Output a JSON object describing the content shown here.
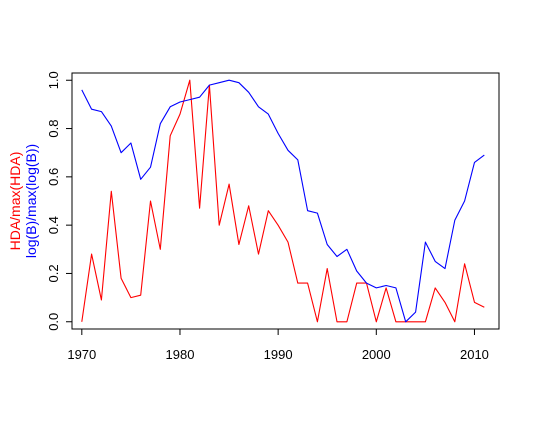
{
  "chart_data": {
    "type": "line",
    "title": "",
    "xlabel": "",
    "ylabel_lines": [
      "HDA/max(HDA)",
      "log(B)/max(log(B))"
    ],
    "xlim": [
      1969,
      2012.5
    ],
    "ylim": [
      -0.03,
      1.03
    ],
    "xticks": [
      1970,
      1980,
      1990,
      2000,
      2010
    ],
    "yticks": [
      0.0,
      0.2,
      0.4,
      0.6,
      0.8,
      1.0
    ],
    "ytick_labels": [
      "0.0",
      "0.2",
      "0.4",
      "0.6",
      "0.8",
      "1.0"
    ],
    "grid": false,
    "legend": "none",
    "x": [
      1970,
      1971,
      1972,
      1973,
      1974,
      1975,
      1976,
      1977,
      1978,
      1979,
      1980,
      1981,
      1982,
      1983,
      1984,
      1985,
      1986,
      1987,
      1988,
      1989,
      1990,
      1991,
      1992,
      1993,
      1994,
      1995,
      1996,
      1997,
      1998,
      1999,
      2000,
      2001,
      2002,
      2003,
      2004,
      2005,
      2006,
      2007,
      2008,
      2009,
      2010,
      2011
    ],
    "series": [
      {
        "color": "#ff0000",
        "values": [
          0.0,
          0.28,
          0.09,
          0.54,
          0.18,
          0.1,
          0.11,
          0.5,
          0.3,
          0.77,
          0.86,
          1.0,
          0.47,
          0.98,
          0.4,
          0.57,
          0.32,
          0.48,
          0.28,
          0.46,
          0.4,
          0.33,
          0.16,
          0.16,
          0.0,
          0.22,
          0.0,
          0.0,
          0.16,
          0.16,
          0.0,
          0.14,
          0.0,
          0.0,
          0.0,
          0.0,
          0.14,
          0.08,
          0.0,
          0.24,
          0.08,
          0.06
        ]
      },
      {
        "color": "#0000ff",
        "values": [
          0.96,
          0.88,
          0.87,
          0.81,
          0.7,
          0.74,
          0.59,
          0.64,
          0.82,
          0.89,
          0.91,
          0.92,
          0.93,
          0.98,
          0.99,
          1.0,
          0.99,
          0.95,
          0.89,
          0.86,
          0.78,
          0.71,
          0.67,
          0.46,
          0.45,
          0.32,
          0.27,
          0.3,
          0.21,
          0.16,
          0.14,
          0.15,
          0.14,
          0.0,
          0.04,
          0.33,
          0.25,
          0.22,
          0.42,
          0.5,
          0.66,
          0.69
        ]
      }
    ]
  }
}
